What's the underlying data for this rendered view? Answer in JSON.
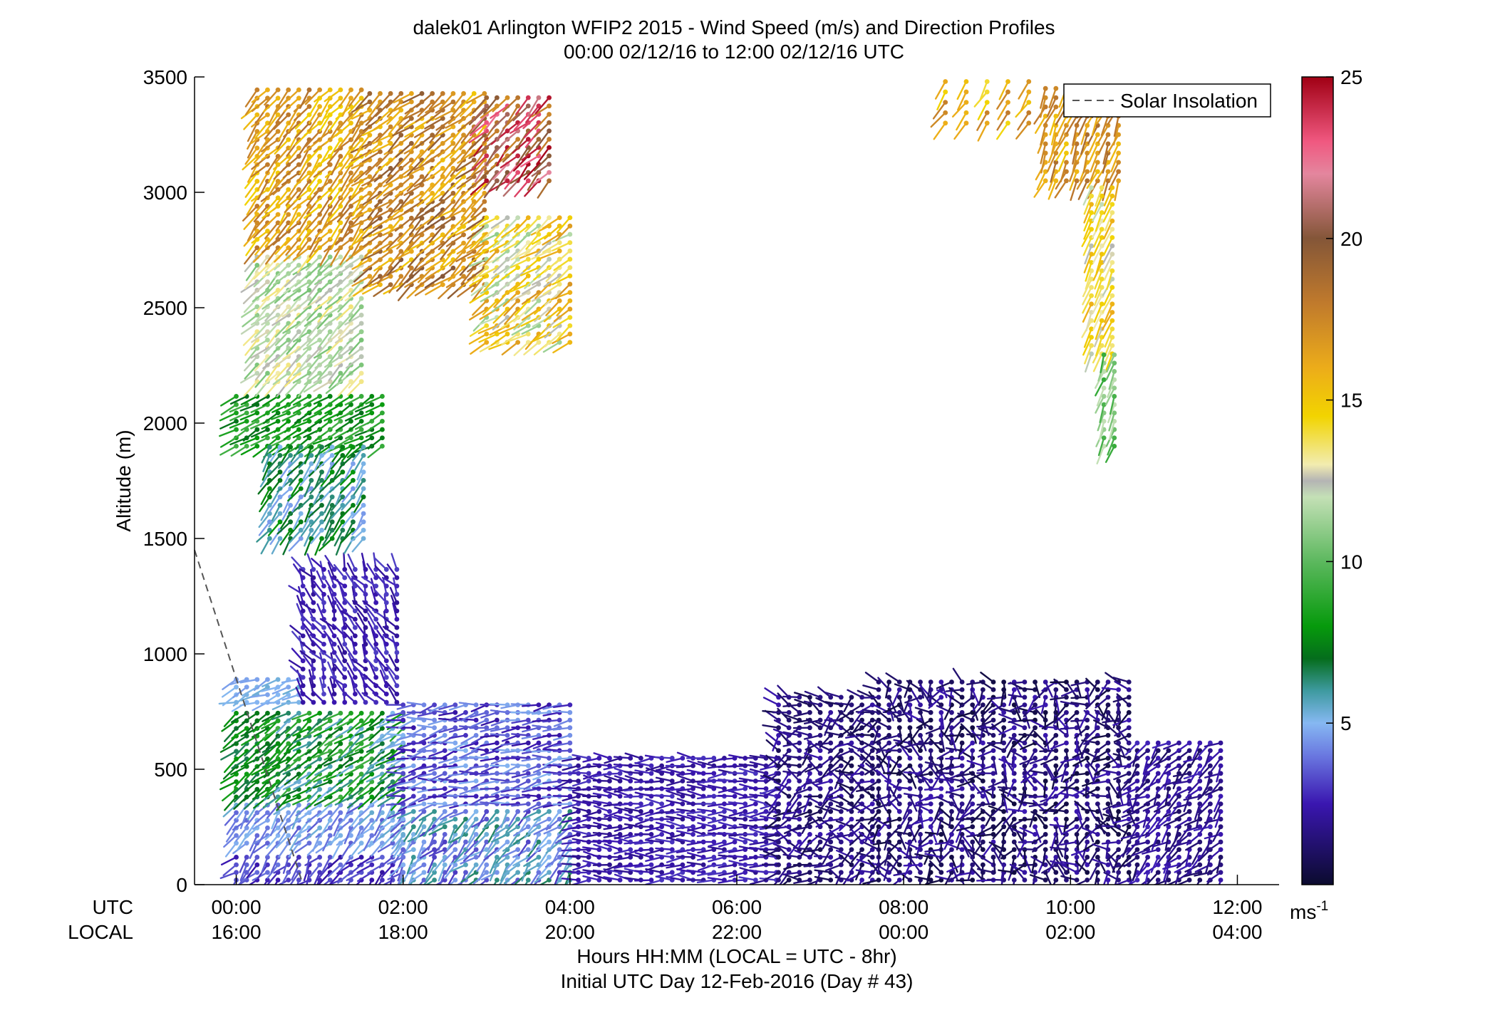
{
  "chart_data": {
    "type": "wind-barb-profile",
    "title_line1": "dalek01 Arlington WFIP2 2015 - Wind Speed (m/s) and Direction Profiles",
    "title_line2": "00:00 02/12/16 to 12:00 02/12/16  UTC",
    "ylabel": "Altitude (m)",
    "xlabel_line1": "Hours HH:MM  (LOCAL = UTC - 8hr)",
    "xlabel_line2": "Initial UTC Day 12-Feb-2016 (Day # 43)",
    "row_label_utc": "UTC",
    "row_label_local": "LOCAL",
    "ylim": [
      0,
      3500
    ],
    "y_ticks": [
      0,
      500,
      1000,
      1500,
      2000,
      2500,
      3000,
      3500
    ],
    "xlim_hours": [
      -0.5,
      12.5
    ],
    "x_ticks_hours": [
      0,
      2,
      4,
      6,
      8,
      10,
      12
    ],
    "x_tick_labels_utc": [
      "00:00",
      "02:00",
      "04:00",
      "06:00",
      "08:00",
      "10:00",
      "12:00"
    ],
    "x_tick_labels_local": [
      "16:00",
      "18:00",
      "20:00",
      "22:00",
      "00:00",
      "02:00",
      "04:00"
    ],
    "legend": {
      "entries": [
        "Solar Insolation"
      ],
      "placement": "top-right",
      "line_style": "dashed"
    },
    "solar_insolation_line": {
      "x_hours": [
        -0.5,
        0.8
      ],
      "y_m": [
        1450,
        0
      ]
    },
    "colorbar": {
      "range": [
        0,
        25
      ],
      "ticks": [
        5,
        10,
        15,
        20,
        25
      ],
      "unit_label": "ms",
      "unit_exponent": "-1",
      "stops": [
        {
          "v": 0,
          "color": "#0b0b2e"
        },
        {
          "v": 2.5,
          "color": "#3a16b0"
        },
        {
          "v": 4,
          "color": "#6a78e0"
        },
        {
          "v": 5,
          "color": "#86b8f2"
        },
        {
          "v": 6,
          "color": "#3e9aa0"
        },
        {
          "v": 7,
          "color": "#056d1c"
        },
        {
          "v": 8,
          "color": "#069a0c"
        },
        {
          "v": 10,
          "color": "#5cb85e"
        },
        {
          "v": 12,
          "color": "#c4e0b6"
        },
        {
          "v": 12.5,
          "color": "#b4b4b4"
        },
        {
          "v": 13,
          "color": "#f2ecb0"
        },
        {
          "v": 14.5,
          "color": "#f2d400"
        },
        {
          "v": 16,
          "color": "#ecac1a"
        },
        {
          "v": 18,
          "color": "#c07a2c"
        },
        {
          "v": 20,
          "color": "#845638"
        },
        {
          "v": 22,
          "color": "#e4869e"
        },
        {
          "v": 23,
          "color": "#f05880"
        },
        {
          "v": 25,
          "color": "#a00014"
        }
      ]
    },
    "wind_blocks": [
      {
        "t0": 0.0,
        "t1": 2.0,
        "dt": 0.125,
        "z0": 20,
        "z1": 150,
        "dz": 33,
        "spd": [
          2.2,
          4.0
        ],
        "dir": [
          190,
          250
        ]
      },
      {
        "t0": 0.0,
        "t1": 2.0,
        "dt": 0.125,
        "z0": 180,
        "z1": 360,
        "dz": 33,
        "spd": [
          3.5,
          5.5
        ],
        "dir": [
          200,
          240
        ]
      },
      {
        "t0": 0.0,
        "t1": 0.5,
        "dt": 0.125,
        "z0": 380,
        "z1": 760,
        "dz": 33,
        "spd": [
          6.5,
          8.5
        ],
        "dir": [
          220,
          245
        ]
      },
      {
        "t0": 0.5,
        "t1": 2.0,
        "dt": 0.125,
        "z0": 380,
        "z1": 760,
        "dz": 33,
        "spd": [
          5.0,
          9.5
        ],
        "dir": [
          220,
          250
        ]
      },
      {
        "t0": 0.0,
        "t1": 0.8,
        "dt": 0.125,
        "z0": 790,
        "z1": 900,
        "dz": 33,
        "spd": [
          4.6,
          5.4
        ],
        "dir": [
          230,
          270
        ]
      },
      {
        "t0": 0.8,
        "t1": 2.0,
        "dt": 0.125,
        "z0": 790,
        "z1": 1400,
        "dz": 36,
        "spd": [
          2.0,
          3.2
        ],
        "dir": [
          300,
          360
        ]
      },
      {
        "t0": 2.0,
        "t1": 4.1,
        "dt": 0.125,
        "z0": 20,
        "z1": 330,
        "dz": 33,
        "spd": [
          3.0,
          6.5
        ],
        "dir": [
          200,
          250
        ]
      },
      {
        "t0": 2.0,
        "t1": 4.1,
        "dt": 0.125,
        "z0": 350,
        "z1": 780,
        "dz": 33,
        "spd": [
          2.2,
          5.0
        ],
        "dir": [
          240,
          280
        ]
      },
      {
        "t0": 4.1,
        "t1": 6.5,
        "dt": 0.125,
        "z0": 20,
        "z1": 560,
        "dz": 33,
        "spd": [
          1.8,
          3.0
        ],
        "dir": [
          250,
          290
        ]
      },
      {
        "t0": 6.5,
        "t1": 7.7,
        "dt": 0.125,
        "z0": 20,
        "z1": 830,
        "dz": 33,
        "spd": [
          0.6,
          2.5
        ],
        "dir": [
          200,
          320
        ]
      },
      {
        "t0": 7.7,
        "t1": 10.8,
        "dt": 0.125,
        "z0": 20,
        "z1": 880,
        "dz": 33,
        "spd": [
          0.3,
          2.6
        ],
        "dir": [
          150,
          330
        ]
      },
      {
        "t0": 10.8,
        "t1": 11.9,
        "dt": 0.125,
        "z0": 20,
        "z1": 640,
        "dz": 33,
        "spd": [
          1.0,
          2.8
        ],
        "dir": [
          190,
          260
        ]
      },
      {
        "t0": 0.0,
        "t1": 1.8,
        "dt": 0.125,
        "z0": 1900,
        "z1": 2150,
        "dz": 36,
        "spd": [
          7.0,
          9.5
        ],
        "dir": [
          230,
          250
        ]
      },
      {
        "t0": 0.4,
        "t1": 1.6,
        "dt": 0.125,
        "z0": 1500,
        "z1": 1900,
        "dz": 36,
        "spd": [
          4.5,
          8.0
        ],
        "dir": [
          200,
          230
        ]
      },
      {
        "t0": 0.25,
        "t1": 1.6,
        "dt": 0.125,
        "z0": 2180,
        "z1": 2750,
        "dz": 36,
        "spd": [
          10.5,
          13.5
        ],
        "dir": [
          215,
          240
        ]
      },
      {
        "t0": 0.25,
        "t1": 1.6,
        "dt": 0.125,
        "z0": 2760,
        "z1": 3450,
        "dz": 36,
        "spd": [
          14.5,
          18.5
        ],
        "dir": [
          205,
          235
        ]
      },
      {
        "t0": 1.6,
        "t1": 3.0,
        "dt": 0.125,
        "z0": 2600,
        "z1": 3450,
        "dz": 36,
        "spd": [
          15.0,
          20.0
        ],
        "dir": [
          215,
          245
        ]
      },
      {
        "t0": 3.0,
        "t1": 4.0,
        "dt": 0.125,
        "z0": 2350,
        "z1": 2900,
        "dz": 36,
        "spd": [
          11.0,
          17.0
        ],
        "dir": [
          220,
          250
        ]
      },
      {
        "t0": 3.0,
        "t1": 3.8,
        "dt": 0.125,
        "z0": 3050,
        "z1": 3420,
        "dz": 36,
        "spd": [
          17.0,
          25.0
        ],
        "dir": [
          210,
          240
        ]
      },
      {
        "t0": 8.5,
        "t1": 9.7,
        "dt": 0.25,
        "z0": 3300,
        "z1": 3480,
        "dz": 45,
        "spd": [
          14.0,
          18.0
        ],
        "dir": [
          200,
          230
        ]
      },
      {
        "t0": 9.7,
        "t1": 10.6,
        "dt": 0.125,
        "z0": 3050,
        "z1": 3480,
        "dz": 40,
        "spd": [
          15.0,
          19.0
        ],
        "dir": [
          190,
          215
        ]
      },
      {
        "t0": 10.25,
        "t1": 10.6,
        "dt": 0.125,
        "z0": 2300,
        "z1": 3050,
        "dz": 36,
        "spd": [
          12.0,
          16.0
        ],
        "dir": [
          195,
          210
        ]
      },
      {
        "t0": 10.4,
        "t1": 10.6,
        "dt": 0.125,
        "z0": 1900,
        "z1": 2300,
        "dz": 36,
        "spd": [
          9.0,
          12.0
        ],
        "dir": [
          190,
          210
        ]
      }
    ]
  }
}
